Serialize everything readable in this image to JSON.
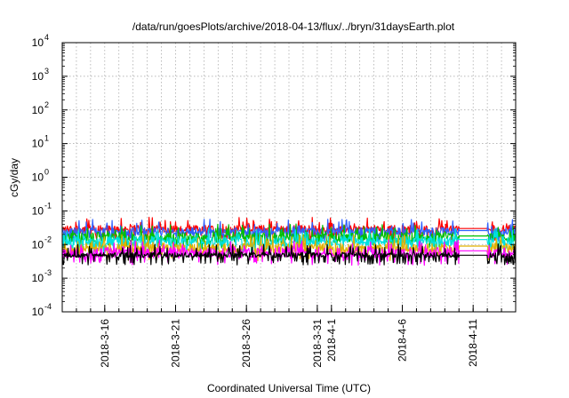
{
  "chart_data": {
    "type": "line",
    "title": "/data/run/goesPlots/archive/2018-04-13/flux/../bryn/31daysEarth.plot",
    "xlabel": "Coordinated Universal Time (UTC)",
    "ylabel": "cGy/day",
    "y_scale": "log",
    "ylim": [
      0.0001,
      10000
    ],
    "xlim": [
      "2018-03-13",
      "2018-04-14"
    ],
    "grid": true,
    "legend": "none",
    "y_ticks": [
      {
        "base": "10",
        "exp": "-4",
        "value": 0.0001
      },
      {
        "base": "10",
        "exp": "-3",
        "value": 0.001
      },
      {
        "base": "10",
        "exp": "-2",
        "value": 0.01
      },
      {
        "base": "10",
        "exp": "-1",
        "value": 0.1
      },
      {
        "base": "10",
        "exp": "0",
        "value": 1
      },
      {
        "base": "10",
        "exp": "1",
        "value": 10
      },
      {
        "base": "10",
        "exp": "2",
        "value": 100
      },
      {
        "base": "10",
        "exp": "3",
        "value": 1000
      },
      {
        "base": "10",
        "exp": "4",
        "value": 10000
      }
    ],
    "x_ticks": [
      {
        "label": "2018-3-16",
        "date": "2018-03-16"
      },
      {
        "label": "2018-3-21",
        "date": "2018-03-21"
      },
      {
        "label": "2018-3-26",
        "date": "2018-03-26"
      },
      {
        "label": "2018-3-31",
        "date": "2018-03-31"
      },
      {
        "label": "2018-4-1",
        "date": "2018-04-01"
      },
      {
        "label": "2018-4-6",
        "date": "2018-04-06"
      },
      {
        "label": "2018-4-11",
        "date": "2018-04-11"
      }
    ],
    "data_gap": {
      "start": "2018-04-10",
      "end": "2018-04-12"
    },
    "series": [
      {
        "color": "#ff0000",
        "base": 0.028,
        "spread": 0.45,
        "gap_value": 0.03
      },
      {
        "color": "#3060ff",
        "base": 0.024,
        "spread": 0.45,
        "gap_value": 0.026
      },
      {
        "color": "#00c000",
        "base": 0.016,
        "spread": 0.55,
        "gap_value": 0.018
      },
      {
        "color": "#00e0e0",
        "base": 0.012,
        "spread": 0.6,
        "gap_value": 0.014
      },
      {
        "color": "#e0b000",
        "base": 0.0075,
        "spread": 0.6,
        "gap_value": 0.009
      },
      {
        "color": "#ff00ff",
        "base": 0.0055,
        "spread": 0.6,
        "gap_value": 0.0065
      },
      {
        "color": "#000000",
        "base": 0.0048,
        "spread": 0.3,
        "gap_value": 0.0048
      }
    ]
  }
}
